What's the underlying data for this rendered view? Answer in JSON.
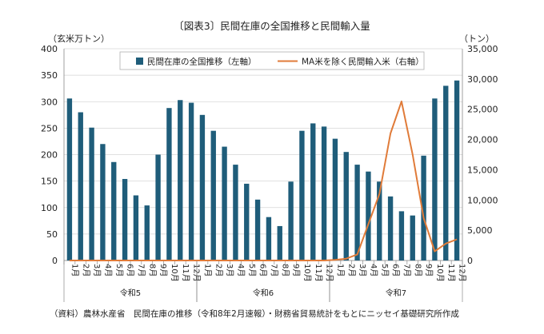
{
  "chart_data": {
    "type": "bar+line",
    "title": "〔図表3〕民間在庫の全国推移と民間輸入量",
    "ylabel_left": "（玄米万トン）",
    "ylabel_right": "（トン）",
    "ylim_left": [
      0,
      400
    ],
    "ylim_right": [
      0,
      35000
    ],
    "yticks_left": [
      "0",
      "50",
      "100",
      "150",
      "200",
      "250",
      "300",
      "350",
      "400"
    ],
    "yticks_right": [
      "0",
      "5,000",
      "10,000",
      "15,000",
      "20,000",
      "25,000",
      "30,000",
      "35,000"
    ],
    "months": [
      "1月",
      "2月",
      "3月",
      "4月",
      "5月",
      "6月",
      "7月",
      "8月",
      "9月",
      "10月",
      "11月",
      "12月",
      "1月",
      "2月",
      "3月",
      "4月",
      "5月",
      "6月",
      "7月",
      "8月",
      "9月",
      "10月",
      "11月",
      "12月",
      "1月",
      "2月",
      "3月",
      "4月",
      "5月",
      "6月",
      "7月",
      "8月",
      "9月",
      "10月",
      "11月",
      "12月"
    ],
    "groups": [
      {
        "label": "令和5",
        "start": 0,
        "end": 11
      },
      {
        "label": "令和6",
        "start": 12,
        "end": 23
      },
      {
        "label": "令和7",
        "start": 24,
        "end": 35
      }
    ],
    "series": [
      {
        "name": "民間在庫の全国推移（左軸）",
        "type": "bar",
        "axis": "left",
        "color": "#1f5d7a",
        "values": [
          306,
          280,
          251,
          220,
          186,
          154,
          123,
          104,
          200,
          288,
          303,
          298,
          275,
          245,
          215,
          181,
          145,
          115,
          82,
          65,
          149,
          245,
          259,
          253,
          230,
          205,
          181,
          168,
          149,
          121,
          93,
          85,
          198,
          306,
          330,
          340
        ]
      },
      {
        "name": "MA米を除く民間輸入米（右軸）",
        "type": "line",
        "axis": "right",
        "color": "#e07b39",
        "values": [
          0,
          0,
          0,
          0,
          0,
          0,
          0,
          0,
          0,
          0,
          0,
          0,
          0,
          0,
          0,
          0,
          0,
          0,
          0,
          0,
          0,
          0,
          0,
          0,
          100,
          300,
          1000,
          6000,
          11000,
          21000,
          26300,
          17500,
          7000,
          1500,
          2800,
          3500
        ]
      }
    ],
    "source": "（資料）農林水産省　民間在庫の推移（令和8年2月速報）・財務省貿易統計をもとにニッセイ基礎研究所作成"
  }
}
